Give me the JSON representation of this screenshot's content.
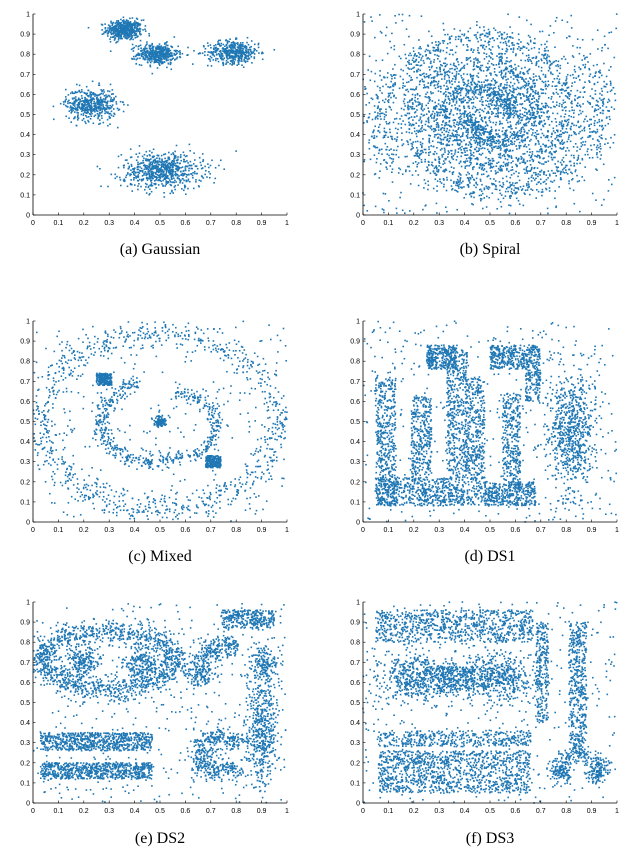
{
  "colors": {
    "points": "#1f77b4",
    "axis": "#000000"
  },
  "chart_data": [
    {
      "type": "scatter",
      "caption": "(a) Gaussian",
      "xlim": [
        0,
        1
      ],
      "ylim": [
        0,
        1
      ],
      "xticks": [
        "0",
        "0.1",
        "0.2",
        "0.3",
        "0.4",
        "0.5",
        "0.6",
        "0.7",
        "0.8",
        "0.9",
        "1"
      ],
      "yticks": [
        "0",
        "0.1",
        "0.2",
        "0.3",
        "0.4",
        "0.5",
        "0.6",
        "0.7",
        "0.8",
        "0.9",
        "1"
      ],
      "grid": false,
      "clusters": [
        {
          "shape": "gaussian",
          "center": [
            0.36,
            0.92
          ],
          "spread": [
            0.035,
            0.025
          ],
          "count": 500
        },
        {
          "shape": "gaussian",
          "center": [
            0.49,
            0.8
          ],
          "spread": [
            0.04,
            0.025
          ],
          "count": 450
        },
        {
          "shape": "gaussian",
          "center": [
            0.79,
            0.81
          ],
          "spread": [
            0.05,
            0.028
          ],
          "count": 450
        },
        {
          "shape": "gaussian",
          "center": [
            0.23,
            0.55
          ],
          "spread": [
            0.05,
            0.04
          ],
          "count": 500
        },
        {
          "shape": "gaussian",
          "center": [
            0.51,
            0.22
          ],
          "spread": [
            0.08,
            0.045
          ],
          "count": 700
        }
      ]
    },
    {
      "type": "scatter",
      "caption": "(b) Spiral",
      "xlim": [
        0,
        1
      ],
      "ylim": [
        0,
        1
      ],
      "xticks": [
        "0",
        "0.1",
        "0.2",
        "0.3",
        "0.4",
        "0.5",
        "0.6",
        "0.7",
        "0.8",
        "0.9",
        "1"
      ],
      "yticks": [
        "0",
        "0.1",
        "0.2",
        "0.3",
        "0.4",
        "0.5",
        "0.6",
        "0.7",
        "0.8",
        "0.9",
        "1"
      ],
      "grid": false,
      "clusters": [
        {
          "shape": "spiral",
          "center": [
            0.5,
            0.5
          ],
          "r0": 0.06,
          "r1": 0.46,
          "turns": 1.6,
          "phase": 0.0,
          "count": 1700
        },
        {
          "shape": "spiral",
          "center": [
            0.5,
            0.5
          ],
          "r0": 0.06,
          "r1": 0.46,
          "turns": 1.6,
          "phase": 3.14159,
          "count": 1700
        },
        {
          "shape": "noise",
          "count": 500
        }
      ]
    },
    {
      "type": "scatter",
      "caption": "(c) Mixed",
      "xlim": [
        0,
        1
      ],
      "ylim": [
        0,
        1
      ],
      "xticks": [
        "0",
        "0.1",
        "0.2",
        "0.3",
        "0.4",
        "0.5",
        "0.6",
        "0.7",
        "0.8",
        "0.9",
        "1"
      ],
      "yticks": [
        "0",
        "0.1",
        "0.2",
        "0.3",
        "0.4",
        "0.5",
        "0.6",
        "0.7",
        "0.8",
        "0.9",
        "1"
      ],
      "grid": false,
      "clusters": [
        {
          "shape": "ring",
          "center": [
            0.5,
            0.5
          ],
          "rx": 0.47,
          "ry": 0.44,
          "width": 0.035,
          "count": 900
        },
        {
          "shape": "square",
          "center": [
            0.28,
            0.71
          ],
          "size": 0.06,
          "count": 220
        },
        {
          "shape": "square",
          "center": [
            0.71,
            0.3
          ],
          "size": 0.06,
          "count": 220
        },
        {
          "shape": "gaussian",
          "center": [
            0.5,
            0.5
          ],
          "spread": [
            0.012,
            0.012
          ],
          "count": 120
        },
        {
          "shape": "arc",
          "center": [
            0.47,
            0.5
          ],
          "r": 0.2,
          "a0": 1.8,
          "a1": 5.3,
          "width": 0.02,
          "count": 350
        },
        {
          "shape": "arc",
          "center": [
            0.55,
            0.48
          ],
          "r": 0.17,
          "a0": -1.2,
          "a1": 1.5,
          "width": 0.015,
          "count": 200
        },
        {
          "shape": "noise",
          "count": 300
        }
      ]
    },
    {
      "type": "scatter",
      "caption": "(d) DS1",
      "xlim": [
        0,
        1
      ],
      "ylim": [
        0,
        1
      ],
      "xticks": [
        "0",
        "0.1",
        "0.2",
        "0.3",
        "0.4",
        "0.5",
        "0.6",
        "0.7",
        "0.8",
        "0.9",
        "1"
      ],
      "yticks": [
        "0",
        "0.1",
        "0.2",
        "0.3",
        "0.4",
        "0.5",
        "0.6",
        "0.7",
        "0.8",
        "0.9",
        "1"
      ],
      "grid": false,
      "clusters": [
        {
          "shape": "rect",
          "x": [
            0.05,
            0.13
          ],
          "y": [
            0.08,
            0.72
          ],
          "count": 450
        },
        {
          "shape": "rect",
          "x": [
            0.05,
            0.4
          ],
          "y": [
            0.08,
            0.22
          ],
          "count": 550
        },
        {
          "shape": "rect",
          "x": [
            0.19,
            0.27
          ],
          "y": [
            0.22,
            0.62
          ],
          "count": 320
        },
        {
          "shape": "rect",
          "x": [
            0.25,
            0.37
          ],
          "y": [
            0.76,
            0.88
          ],
          "count": 300
        },
        {
          "shape": "rect",
          "x": [
            0.33,
            0.41
          ],
          "y": [
            0.22,
            0.86
          ],
          "count": 450
        },
        {
          "shape": "rect",
          "x": [
            0.41,
            0.48
          ],
          "y": [
            0.08,
            0.72
          ],
          "count": 400
        },
        {
          "shape": "rect",
          "x": [
            0.48,
            0.68
          ],
          "y": [
            0.08,
            0.2
          ],
          "count": 380
        },
        {
          "shape": "rect",
          "x": [
            0.55,
            0.62
          ],
          "y": [
            0.2,
            0.64
          ],
          "count": 300
        },
        {
          "shape": "rect",
          "x": [
            0.5,
            0.7
          ],
          "y": [
            0.76,
            0.88
          ],
          "count": 380
        },
        {
          "shape": "rect",
          "x": [
            0.64,
            0.7
          ],
          "y": [
            0.6,
            0.76
          ],
          "count": 120
        },
        {
          "shape": "gaussian",
          "center": [
            0.82,
            0.45
          ],
          "spread": [
            0.045,
            0.15
          ],
          "count": 700
        },
        {
          "shape": "noise",
          "count": 450
        }
      ]
    },
    {
      "type": "scatter",
      "caption": "(e) DS2",
      "xlim": [
        0,
        1
      ],
      "ylim": [
        0,
        1
      ],
      "xticks": [
        "0",
        "0.1",
        "0.2",
        "0.3",
        "0.4",
        "0.5",
        "0.6",
        "0.7",
        "0.8",
        "0.9",
        "1"
      ],
      "yticks": [
        "0",
        "0.1",
        "0.2",
        "0.3",
        "0.4",
        "0.5",
        "0.6",
        "0.7",
        "0.8",
        "0.9",
        "1"
      ],
      "grid": false,
      "clusters": [
        {
          "shape": "ring",
          "center": [
            0.3,
            0.71
          ],
          "rx": 0.26,
          "ry": 0.15,
          "width": 0.03,
          "count": 1200
        },
        {
          "shape": "gaussian",
          "center": [
            0.19,
            0.7
          ],
          "spread": [
            0.035,
            0.04
          ],
          "count": 200
        },
        {
          "shape": "gaussian",
          "center": [
            0.42,
            0.7
          ],
          "spread": [
            0.035,
            0.04
          ],
          "count": 200
        },
        {
          "shape": "rect",
          "x": [
            0.03,
            0.47
          ],
          "y": [
            0.26,
            0.35
          ],
          "count": 700
        },
        {
          "shape": "rect",
          "x": [
            0.03,
            0.47
          ],
          "y": [
            0.12,
            0.2
          ],
          "count": 700
        },
        {
          "shape": "rect",
          "x": [
            0.74,
            0.95
          ],
          "y": [
            0.87,
            0.96
          ],
          "count": 300
        },
        {
          "shape": "arc",
          "center": [
            0.8,
            0.65
          ],
          "r": 0.15,
          "a0": 1.5,
          "a1": 3.6,
          "width": 0.03,
          "count": 350
        },
        {
          "shape": "gaussian",
          "center": [
            0.9,
            0.37
          ],
          "spread": [
            0.03,
            0.14
          ],
          "count": 500
        },
        {
          "shape": "gaussian",
          "center": [
            0.91,
            0.7
          ],
          "spread": [
            0.025,
            0.04
          ],
          "count": 150
        },
        {
          "shape": "arc",
          "center": [
            0.74,
            0.24
          ],
          "r": 0.09,
          "a0": 0.5,
          "a1": 5.6,
          "width": 0.025,
          "count": 450
        },
        {
          "shape": "noise",
          "count": 500
        }
      ]
    },
    {
      "type": "scatter",
      "caption": "(f) DS3",
      "xlim": [
        0,
        1
      ],
      "ylim": [
        0,
        1
      ],
      "xticks": [
        "0",
        "0.1",
        "0.2",
        "0.3",
        "0.4",
        "0.5",
        "0.6",
        "0.7",
        "0.8",
        "0.9",
        "1"
      ],
      "yticks": [
        "0",
        "0.1",
        "0.2",
        "0.3",
        "0.4",
        "0.5",
        "0.6",
        "0.7",
        "0.8",
        "0.9",
        "1"
      ],
      "grid": false,
      "clusters": [
        {
          "shape": "rect",
          "x": [
            0.05,
            0.67
          ],
          "y": [
            0.8,
            0.96
          ],
          "count": 800
        },
        {
          "shape": "gaussian",
          "center": [
            0.22,
            0.62
          ],
          "spread": [
            0.08,
            0.06
          ],
          "count": 550
        },
        {
          "shape": "gaussian",
          "center": [
            0.52,
            0.62
          ],
          "spread": [
            0.08,
            0.06
          ],
          "count": 550
        },
        {
          "shape": "rect",
          "x": [
            0.3,
            0.44
          ],
          "y": [
            0.56,
            0.68
          ],
          "count": 180
        },
        {
          "shape": "rect",
          "x": [
            0.06,
            0.66
          ],
          "y": [
            0.05,
            0.26
          ],
          "count": 1100
        },
        {
          "shape": "rect",
          "x": [
            0.06,
            0.66
          ],
          "y": [
            0.28,
            0.36
          ],
          "count": 400
        },
        {
          "shape": "rect",
          "x": [
            0.68,
            0.73
          ],
          "y": [
            0.4,
            0.9
          ],
          "count": 250
        },
        {
          "shape": "rect",
          "x": [
            0.81,
            0.88
          ],
          "y": [
            0.25,
            0.9
          ],
          "count": 450
        },
        {
          "shape": "arc",
          "center": [
            0.85,
            0.15
          ],
          "r": 0.09,
          "a0": 0.0,
          "a1": 3.14159,
          "width": 0.02,
          "count": 200
        },
        {
          "shape": "gaussian",
          "center": [
            0.78,
            0.14
          ],
          "spread": [
            0.02,
            0.02
          ],
          "count": 80
        },
        {
          "shape": "gaussian",
          "center": [
            0.92,
            0.14
          ],
          "spread": [
            0.02,
            0.02
          ],
          "count": 80
        },
        {
          "shape": "noise",
          "count": 450
        }
      ]
    }
  ]
}
